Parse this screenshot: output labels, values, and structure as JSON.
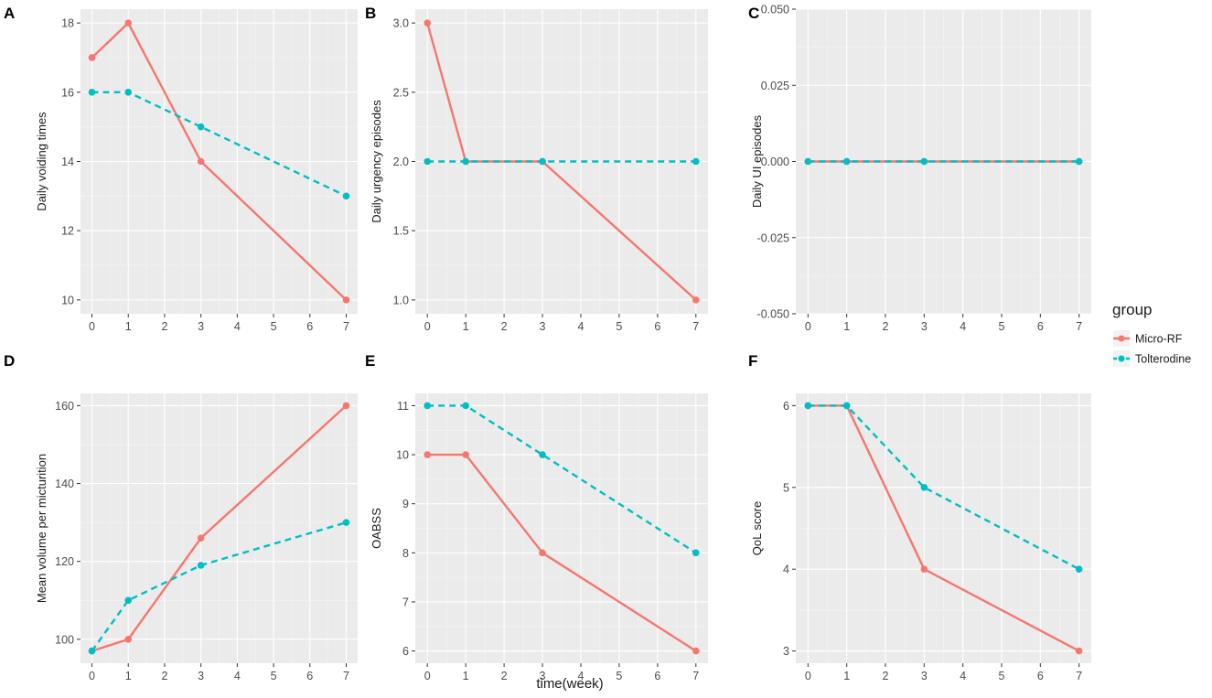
{
  "figure": {
    "xlabel": "time(week)",
    "legend": {
      "title": "group",
      "entries": [
        {
          "name": "Micro-RF",
          "color": "#F8766D",
          "dash": "solid"
        },
        {
          "name": "Tolterodine",
          "color": "#00BFC4",
          "dash": "dashed"
        }
      ]
    }
  },
  "chart_data": [
    {
      "tag": "A",
      "type": "line",
      "ylabel": "Daily voiding times",
      "xlim": [
        0,
        7
      ],
      "xticks": [
        "0",
        "1",
        "2",
        "3",
        "4",
        "5",
        "6",
        "7"
      ],
      "ylim": [
        9.6,
        18.4
      ],
      "yticks": [
        "10",
        "12",
        "14",
        "16",
        "18"
      ],
      "series": [
        {
          "name": "Micro-RF",
          "x": [
            0,
            1,
            3,
            7
          ],
          "y": [
            17,
            18,
            14,
            10
          ]
        },
        {
          "name": "Tolterodine",
          "x": [
            0,
            1,
            3,
            7
          ],
          "y": [
            16,
            16,
            15,
            13
          ]
        }
      ]
    },
    {
      "tag": "B",
      "type": "line",
      "ylabel": "Daily urgency episodes",
      "xlim": [
        0,
        7
      ],
      "xticks": [
        "0",
        "1",
        "2",
        "3",
        "4",
        "5",
        "6",
        "7"
      ],
      "ylim": [
        0.9,
        3.1
      ],
      "yticks": [
        "1.0",
        "1.5",
        "2.0",
        "2.5",
        "3.0"
      ],
      "series": [
        {
          "name": "Micro-RF",
          "x": [
            0,
            1,
            3,
            7
          ],
          "y": [
            3,
            2,
            2,
            1
          ]
        },
        {
          "name": "Tolterodine",
          "x": [
            0,
            1,
            3,
            7
          ],
          "y": [
            2,
            2,
            2,
            2
          ]
        }
      ]
    },
    {
      "tag": "C",
      "type": "line",
      "ylabel": "Daily UI episodes",
      "xlim": [
        0,
        7
      ],
      "xticks": [
        "0",
        "1",
        "2",
        "3",
        "4",
        "5",
        "6",
        "7"
      ],
      "ylim": [
        -0.05,
        0.05
      ],
      "yticks": [
        "-0.050",
        "-0.025",
        "0.000",
        "0.025",
        "0.050"
      ],
      "series": [
        {
          "name": "Micro-RF",
          "x": [
            0,
            1,
            3,
            7
          ],
          "y": [
            0,
            0,
            0,
            0
          ]
        },
        {
          "name": "Tolterodine",
          "x": [
            0,
            1,
            3,
            7
          ],
          "y": [
            0,
            0,
            0,
            0
          ]
        }
      ]
    },
    {
      "tag": "D",
      "type": "line",
      "ylabel": "Mean volume per micturition",
      "xlim": [
        0,
        7
      ],
      "xticks": [
        "0",
        "1",
        "2",
        "3",
        "4",
        "5",
        "6",
        "7"
      ],
      "ylim": [
        93.85,
        163.15
      ],
      "yticks": [
        "100",
        "120",
        "140",
        "160"
      ],
      "series": [
        {
          "name": "Micro-RF",
          "x": [
            0,
            1,
            3,
            7
          ],
          "y": [
            97,
            100,
            126,
            160
          ]
        },
        {
          "name": "Tolterodine",
          "x": [
            0,
            1,
            3,
            7
          ],
          "y": [
            97,
            110,
            119,
            130
          ]
        }
      ]
    },
    {
      "tag": "E",
      "type": "line",
      "ylabel": "OABSS",
      "xlim": [
        0,
        7
      ],
      "xticks": [
        "0",
        "1",
        "2",
        "3",
        "4",
        "5",
        "6",
        "7"
      ],
      "ylim": [
        5.75,
        11.25
      ],
      "yticks": [
        "6",
        "7",
        "8",
        "9",
        "10",
        "11"
      ],
      "series": [
        {
          "name": "Micro-RF",
          "x": [
            0,
            1,
            3,
            7
          ],
          "y": [
            10,
            10,
            8,
            6
          ]
        },
        {
          "name": "Tolterodine",
          "x": [
            0,
            1,
            3,
            7
          ],
          "y": [
            11,
            11,
            10,
            8
          ]
        }
      ]
    },
    {
      "tag": "F",
      "type": "line",
      "ylabel": "QoL score",
      "xlim": [
        0,
        7
      ],
      "xticks": [
        "0",
        "1",
        "2",
        "3",
        "4",
        "5",
        "6",
        "7"
      ],
      "ylim": [
        2.85,
        6.15
      ],
      "yticks": [
        "3",
        "4",
        "5",
        "6"
      ],
      "series": [
        {
          "name": "Micro-RF",
          "x": [
            0,
            1,
            3,
            7
          ],
          "y": [
            6,
            6,
            4,
            3
          ]
        },
        {
          "name": "Tolterodine",
          "x": [
            0,
            1,
            3,
            7
          ],
          "y": [
            6,
            6,
            5,
            4
          ]
        }
      ]
    }
  ]
}
